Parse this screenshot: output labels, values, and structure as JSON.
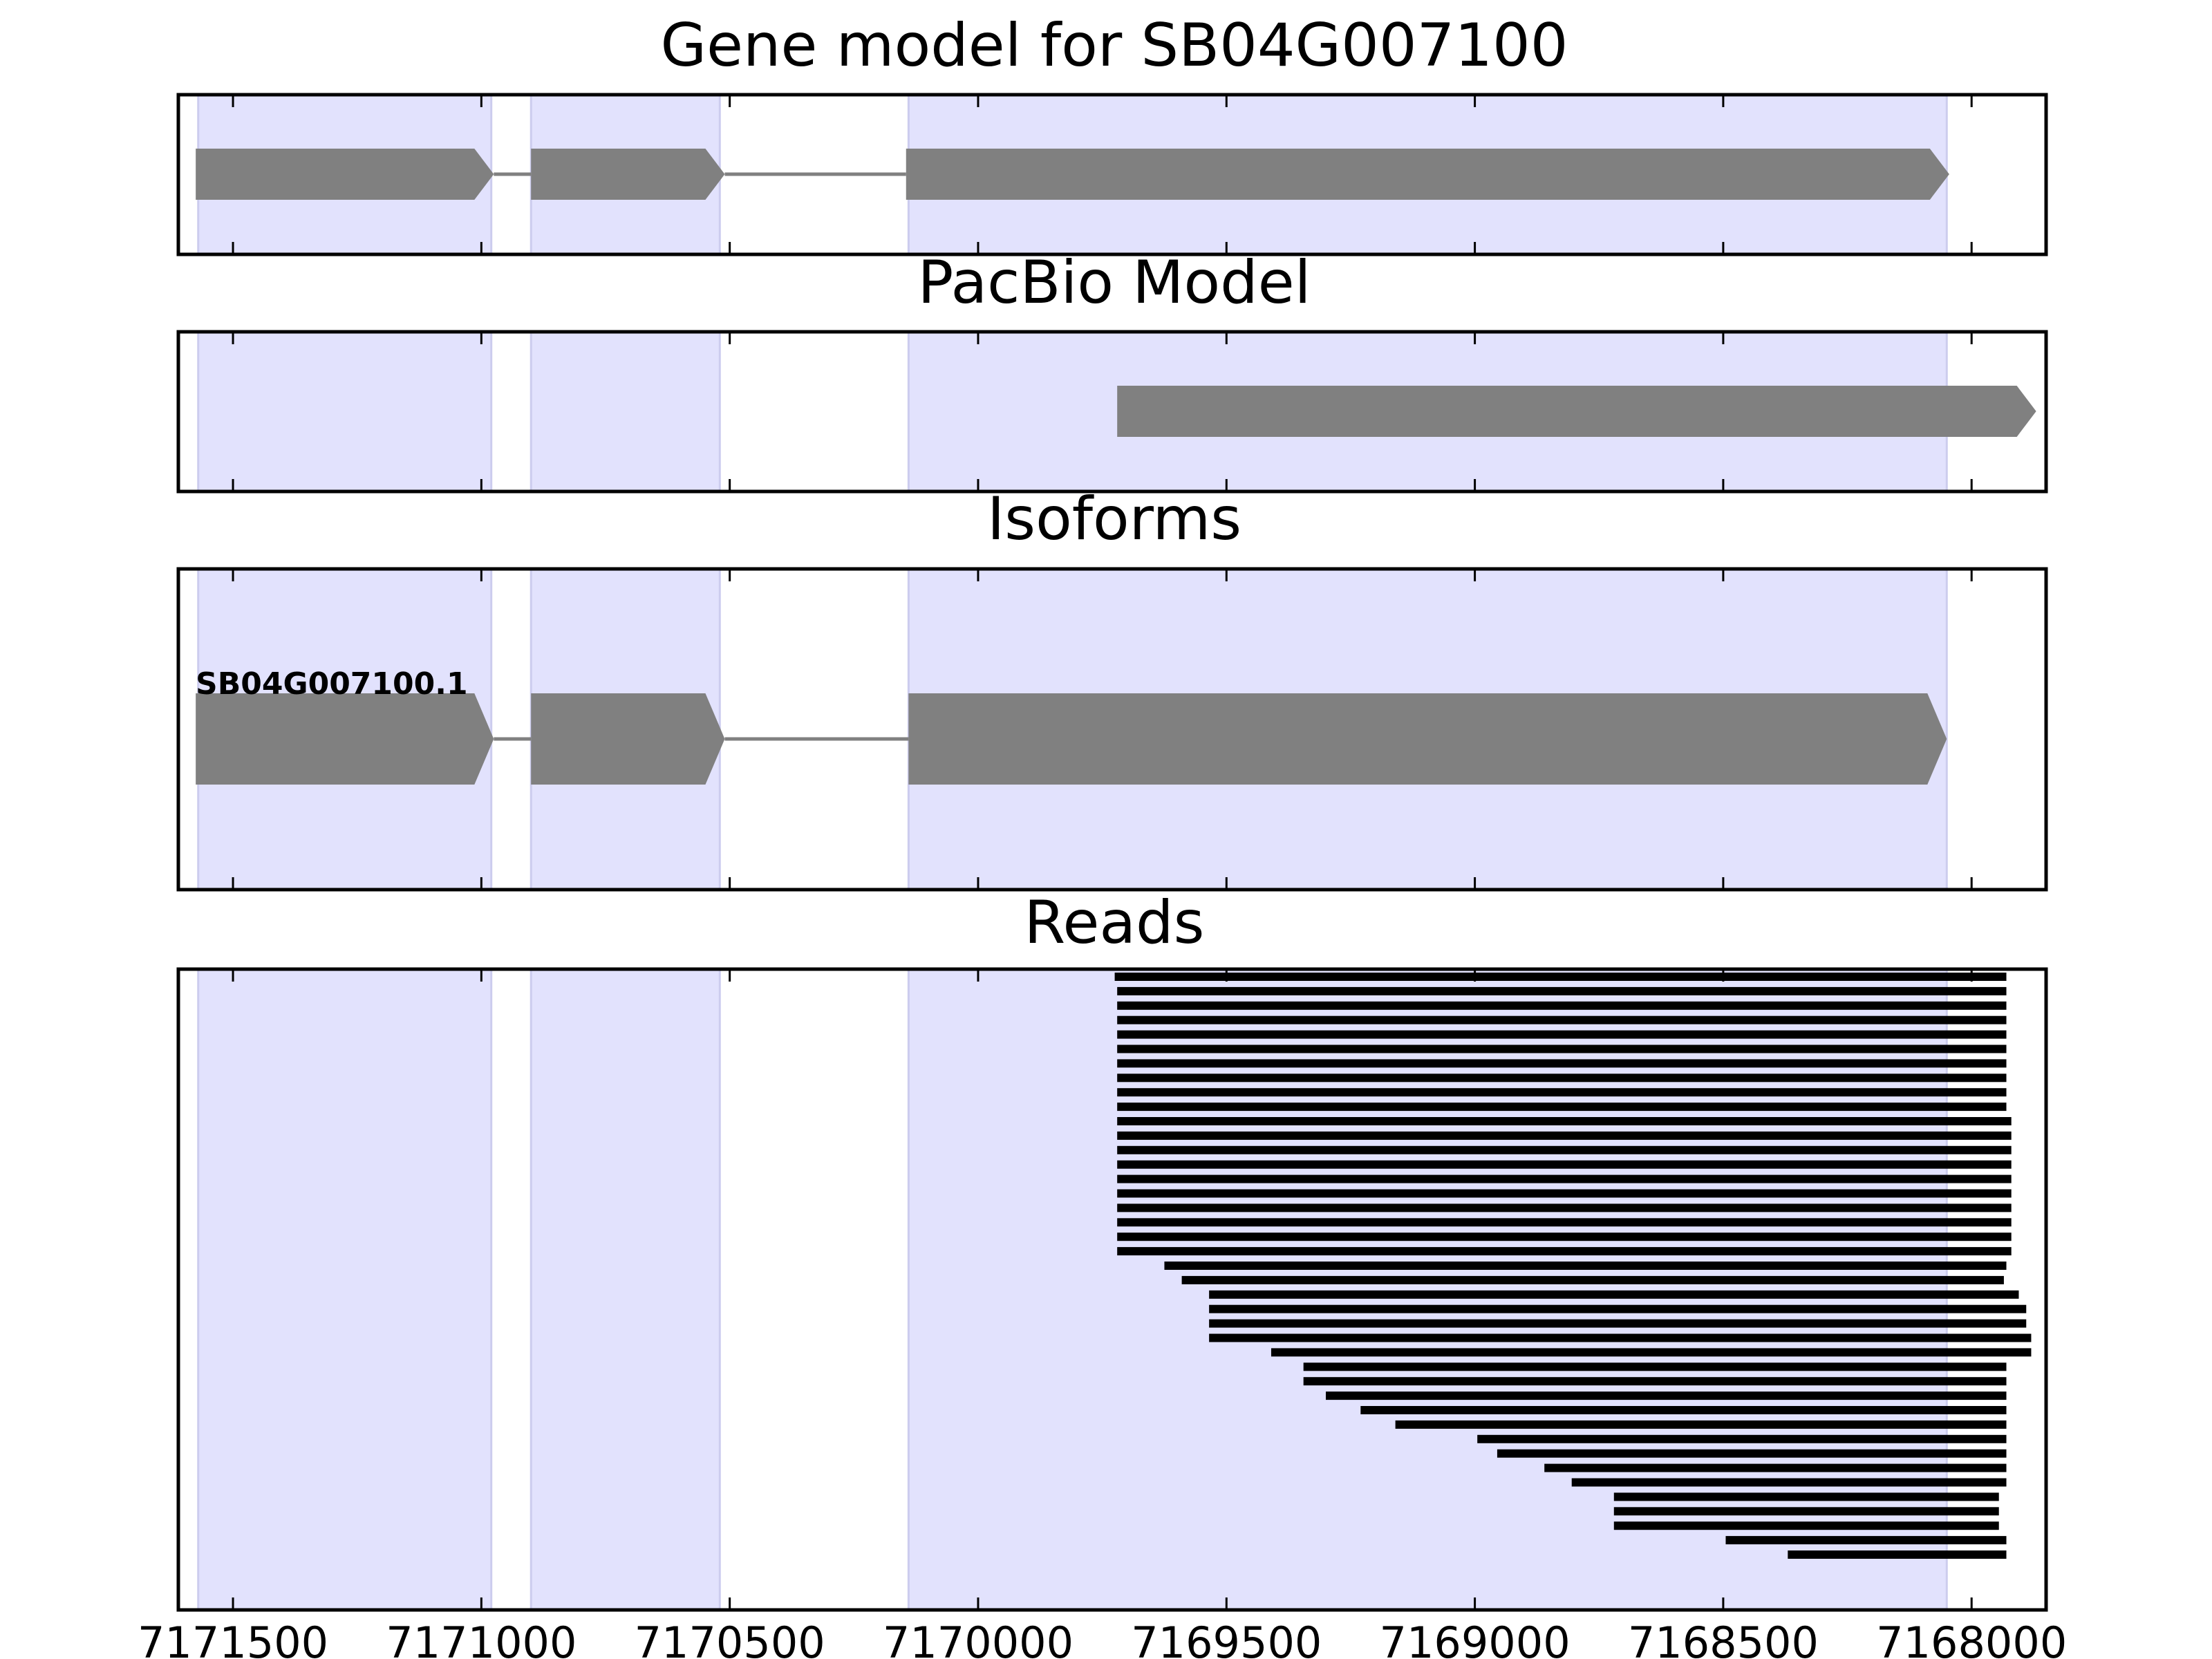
{
  "chart_data": {
    "type": "genome-track",
    "x_axis": {
      "direction": "reversed",
      "xlim": [
        7171610,
        7167850
      ],
      "ticks": [
        7171500,
        7171000,
        7170500,
        7170000,
        7169500,
        7169000,
        7168500,
        7168000
      ],
      "tick_labels": [
        "7171500",
        "7171000",
        "7170500",
        "7170000",
        "7169500",
        "7169000",
        "7168500",
        "7168000"
      ]
    },
    "exon_shading": {
      "color": "#e2e2fd",
      "edge_color": "#ccccee",
      "regions": [
        [
          7171570,
          7170980
        ],
        [
          7170900,
          7170520
        ],
        [
          7170140,
          7168050
        ]
      ]
    },
    "feature_color": "#808080",
    "panels": [
      {
        "title": "Gene model for SB04G007100",
        "exons": [
          [
            7171575,
            7170975
          ],
          [
            7170900,
            7170510
          ],
          [
            7170145,
            7168045
          ]
        ],
        "label": ""
      },
      {
        "title": "PacBio Model",
        "exons": [
          [
            7169720,
            7167870
          ]
        ],
        "label": ""
      },
      {
        "title": "Isoforms",
        "exons": [
          [
            7171575,
            7170975
          ],
          [
            7170900,
            7170510
          ],
          [
            7170140,
            7168050
          ]
        ],
        "label": "SB04G007100.1"
      },
      {
        "title": "Reads",
        "reads": [
          [
            7169725,
            7167930
          ],
          [
            7169720,
            7167930
          ],
          [
            7169720,
            7167930
          ],
          [
            7169720,
            7167930
          ],
          [
            7169720,
            7167930
          ],
          [
            7169720,
            7167930
          ],
          [
            7169720,
            7167930
          ],
          [
            7169720,
            7167930
          ],
          [
            7169720,
            7167930
          ],
          [
            7169720,
            7167930
          ],
          [
            7169720,
            7167920
          ],
          [
            7169720,
            7167920
          ],
          [
            7169720,
            7167920
          ],
          [
            7169720,
            7167920
          ],
          [
            7169720,
            7167920
          ],
          [
            7169720,
            7167920
          ],
          [
            7169720,
            7167920
          ],
          [
            7169720,
            7167920
          ],
          [
            7169720,
            7167920
          ],
          [
            7169720,
            7167920
          ],
          [
            7169625,
            7167930
          ],
          [
            7169590,
            7167935
          ],
          [
            7169535,
            7167905
          ],
          [
            7169535,
            7167890
          ],
          [
            7169535,
            7167890
          ],
          [
            7169535,
            7167880
          ],
          [
            7169410,
            7167880
          ],
          [
            7169345,
            7167930
          ],
          [
            7169345,
            7167930
          ],
          [
            7169300,
            7167930
          ],
          [
            7169230,
            7167930
          ],
          [
            7169160,
            7167930
          ],
          [
            7168995,
            7167930
          ],
          [
            7168955,
            7167930
          ],
          [
            7168860,
            7167930
          ],
          [
            7168805,
            7167930
          ],
          [
            7168720,
            7167945
          ],
          [
            7168720,
            7167945
          ],
          [
            7168720,
            7167945
          ],
          [
            7168495,
            7167930
          ],
          [
            7168370,
            7167930
          ]
        ]
      }
    ]
  }
}
